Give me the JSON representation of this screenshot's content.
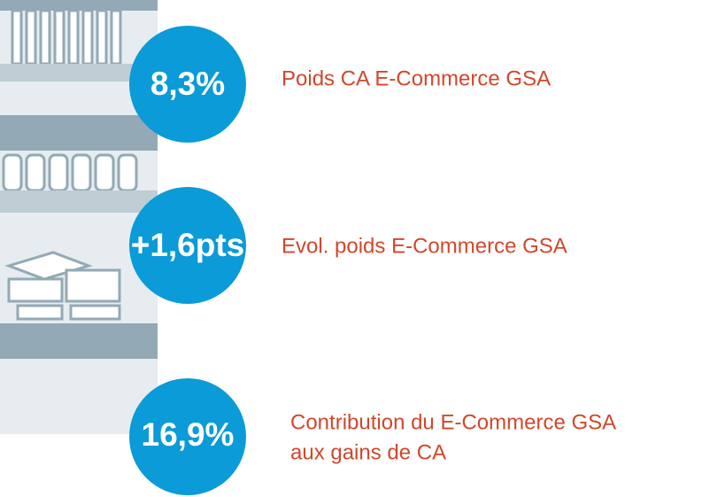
{
  "items": [
    {
      "value": "8,3%",
      "label": [
        "Poids CA E-Commerce GSA"
      ]
    },
    {
      "value": "+1,6pts",
      "label": [
        "Evol. poids E-Commerce GSA"
      ]
    },
    {
      "value": "16,9%",
      "label": [
        "Contribution du E-Commerce GSA",
        "aux gains de CA"
      ]
    }
  ]
}
